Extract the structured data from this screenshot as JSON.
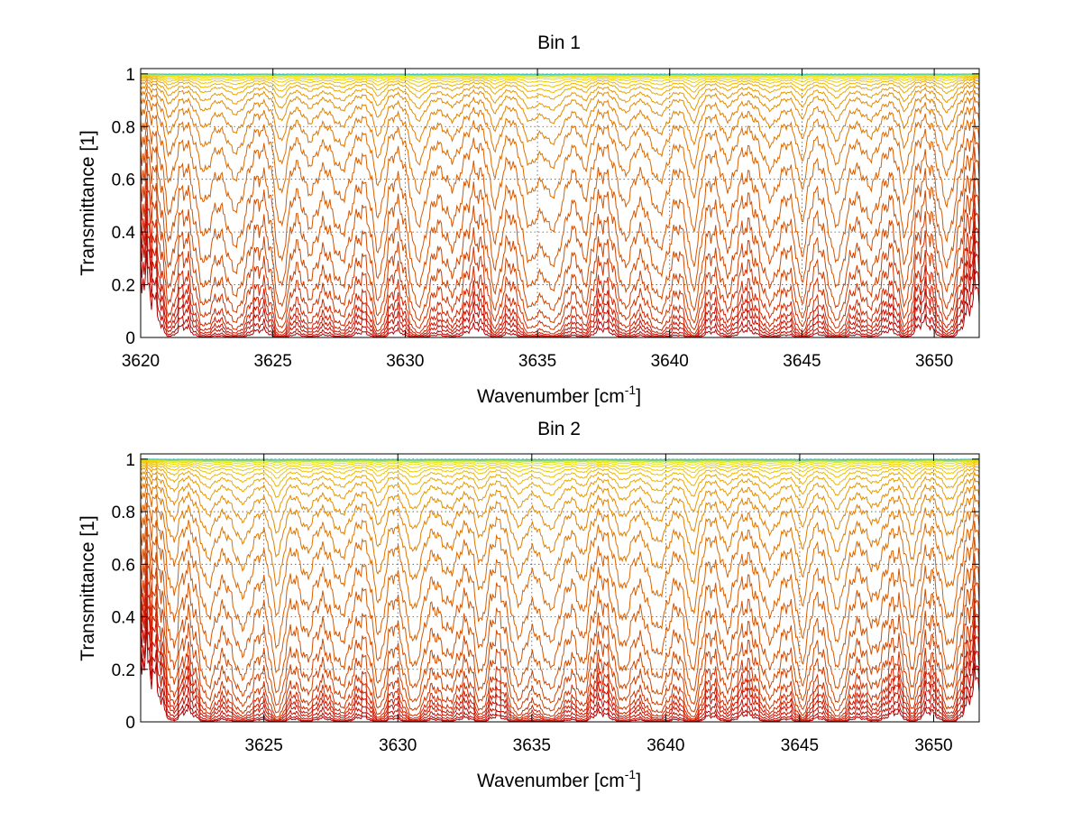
{
  "chart_data": [
    {
      "type": "line",
      "title": "Bin 1",
      "xlabel": "Wavenumber [cm",
      "xlabel_sup": "-1",
      "xlabel_close": "]",
      "ylabel": "Transmittance [1]",
      "xlim": [
        3620,
        3651.7
      ],
      "ylim": [
        0,
        1.02
      ],
      "grid": true,
      "xticks": [
        3620,
        3625,
        3630,
        3635,
        3640,
        3645,
        3650
      ],
      "xtick_labels": [
        "3620",
        "3625",
        "3630",
        "3635",
        "3640",
        "3645",
        "3650"
      ],
      "yticks": [
        0,
        0.2,
        0.4,
        0.6,
        0.8,
        1
      ],
      "ytick_labels": [
        "0",
        "0.2",
        "0.4",
        "0.6",
        "0.8",
        "1"
      ],
      "line_centers": [
        3621.1,
        3622.4,
        3623.6,
        3625.3,
        3626.4,
        3627.6,
        3629.0,
        3630.5,
        3631.8,
        3633.4,
        3634.7,
        3635.6,
        3636.8,
        3638.3,
        3639.6,
        3640.9,
        3642.2,
        3643.8,
        3645.0,
        3646.3,
        3647.6,
        3648.9,
        3650.5
      ],
      "series_baseline_transmittance": [
        0.005,
        0.012,
        0.025,
        0.04,
        0.06,
        0.09,
        0.14,
        0.2,
        0.28,
        0.38,
        0.48,
        0.6,
        0.7,
        0.78,
        0.84,
        0.89,
        0.92,
        0.945,
        0.96,
        0.972,
        0.981,
        0.988,
        0.992,
        0.995,
        0.997,
        0.998,
        0.999
      ],
      "colors": [
        "#b20000",
        "#d01800",
        "#cc4400",
        "#d86000",
        "#e28a00",
        "#f0c000",
        "#e8e800",
        "#40c8c0"
      ]
    },
    {
      "type": "line",
      "title": "Bin 2",
      "xlabel": "Wavenumber [cm",
      "xlabel_sup": "-1",
      "xlabel_close": "]",
      "ylabel": "Transmittance [1]",
      "xlim": [
        3620.4,
        3651.7
      ],
      "ylim": [
        0,
        1.02
      ],
      "grid": true,
      "xticks": [
        3625,
        3630,
        3635,
        3640,
        3645,
        3650
      ],
      "xtick_labels": [
        "3625",
        "3630",
        "3635",
        "3640",
        "3645",
        "3650"
      ],
      "yticks": [
        0,
        0.2,
        0.4,
        0.6,
        0.8,
        1
      ],
      "ytick_labels": [
        "0",
        "0.2",
        "0.4",
        "0.6",
        "0.8",
        "1"
      ],
      "line_centers": [
        3621.6,
        3622.9,
        3624.2,
        3625.5,
        3626.6,
        3627.9,
        3629.3,
        3630.6,
        3631.9,
        3633.1,
        3634.5,
        3635.7,
        3636.9,
        3638.4,
        3639.7,
        3641.0,
        3642.3,
        3643.9,
        3645.1,
        3646.4,
        3647.8,
        3649.2,
        3650.6
      ],
      "series_baseline_transmittance": [
        0.005,
        0.01,
        0.02,
        0.035,
        0.05,
        0.07,
        0.1,
        0.15,
        0.21,
        0.29,
        0.39,
        0.49,
        0.6,
        0.69,
        0.77,
        0.83,
        0.88,
        0.915,
        0.94,
        0.958,
        0.97,
        0.98,
        0.987,
        0.992,
        0.995,
        0.997,
        0.999
      ],
      "colors": [
        "#b20000",
        "#d01800",
        "#cc4400",
        "#d86000",
        "#e28a00",
        "#f0c000",
        "#e8e800",
        "#40c8c0"
      ]
    }
  ]
}
